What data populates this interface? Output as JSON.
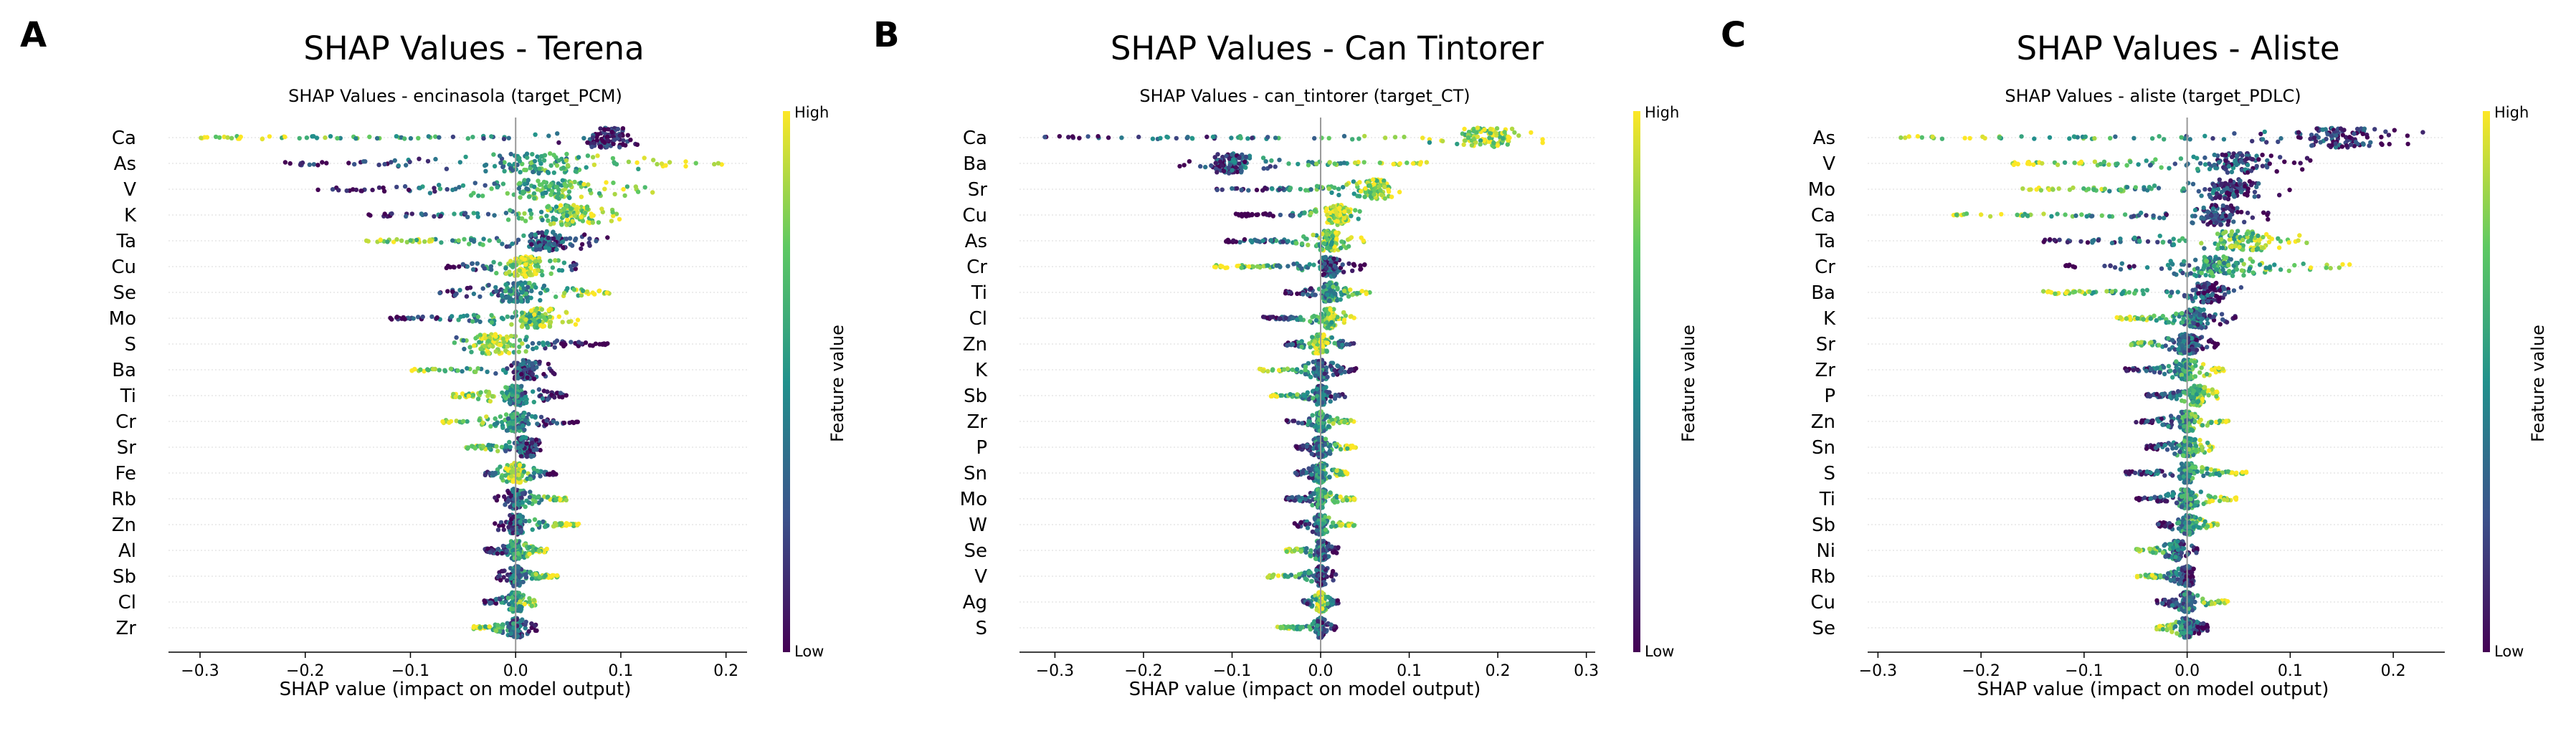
{
  "chart_data": [
    {
      "type": "scatter",
      "panel_letter": "A",
      "title": "SHAP Values - Terena",
      "subtitle": "SHAP Values - encinasola (target_PCM)",
      "xlabel": "SHAP value (impact on model output)",
      "colorbar_label": "Feature value",
      "colorbar_high": "High",
      "colorbar_low": "Low",
      "xlim": [
        -0.33,
        0.22
      ],
      "xticks": [
        -0.3,
        -0.2,
        -0.1,
        0.0,
        0.1,
        0.2
      ],
      "xtick_labels": [
        "−0.3",
        "−0.2",
        "−0.1",
        "0.0",
        "0.1",
        "0.2"
      ],
      "features": [
        {
          "name": "Ca",
          "min": -0.3,
          "max": 0.12,
          "peak": 0.09,
          "width": 0.06,
          "hi": -1
        },
        {
          "name": "As",
          "min": -0.22,
          "max": 0.2,
          "peak": 0.02,
          "width": 0.12,
          "hi": 1
        },
        {
          "name": "V",
          "min": -0.19,
          "max": 0.14,
          "peak": 0.03,
          "width": 0.1,
          "hi": 1
        },
        {
          "name": "K",
          "min": -0.14,
          "max": 0.1,
          "peak": 0.05,
          "width": 0.06,
          "hi": 1
        },
        {
          "name": "Ta",
          "min": -0.15,
          "max": 0.09,
          "peak": 0.03,
          "width": 0.06,
          "hi": -1
        },
        {
          "name": "Cu",
          "min": -0.07,
          "max": 0.06,
          "peak": 0.01,
          "width": 0.04,
          "hi": 0
        },
        {
          "name": "Se",
          "min": -0.08,
          "max": 0.09,
          "peak": 0.0,
          "width": 0.05,
          "hi": 1
        },
        {
          "name": "Mo",
          "min": -0.12,
          "max": 0.06,
          "peak": 0.02,
          "width": 0.05,
          "hi": 1
        },
        {
          "name": "S",
          "min": -0.06,
          "max": 0.09,
          "peak": -0.02,
          "width": 0.05,
          "hi": 0
        },
        {
          "name": "Ba",
          "min": -0.1,
          "max": 0.04,
          "peak": 0.01,
          "width": 0.03,
          "hi": -1
        },
        {
          "name": "Ti",
          "min": -0.06,
          "max": 0.05,
          "peak": 0.0,
          "width": 0.03,
          "hi": -1
        },
        {
          "name": "Cr",
          "min": -0.07,
          "max": 0.06,
          "peak": 0.0,
          "width": 0.03,
          "hi": -1
        },
        {
          "name": "Sr",
          "min": -0.05,
          "max": 0.03,
          "peak": 0.01,
          "width": 0.025,
          "hi": -1
        },
        {
          "name": "Fe",
          "min": -0.03,
          "max": 0.04,
          "peak": 0.0,
          "width": 0.02,
          "hi": 0
        },
        {
          "name": "Rb",
          "min": -0.02,
          "max": 0.05,
          "peak": 0.0,
          "width": 0.02,
          "hi": 1
        },
        {
          "name": "Zn",
          "min": -0.02,
          "max": 0.06,
          "peak": 0.0,
          "width": 0.02,
          "hi": 1
        },
        {
          "name": "Al",
          "min": -0.03,
          "max": 0.03,
          "peak": 0.0,
          "width": 0.015,
          "hi": 1
        },
        {
          "name": "Sb",
          "min": -0.02,
          "max": 0.04,
          "peak": 0.0,
          "width": 0.015,
          "hi": 1
        },
        {
          "name": "Cl",
          "min": -0.03,
          "max": 0.02,
          "peak": 0.0,
          "width": 0.015,
          "hi": 1
        },
        {
          "name": "Zr",
          "min": -0.04,
          "max": 0.02,
          "peak": 0.0,
          "width": 0.015,
          "hi": -1
        }
      ]
    },
    {
      "type": "scatter",
      "panel_letter": "B",
      "title": "SHAP Values - Can Tintorer",
      "subtitle": "SHAP Values - can_tintorer (target_CT)",
      "xlabel": "SHAP value (impact on model output)",
      "colorbar_label": "Feature value",
      "colorbar_high": "High",
      "colorbar_low": "Low",
      "xlim": [
        -0.34,
        0.31
      ],
      "xticks": [
        -0.3,
        -0.2,
        -0.1,
        0.0,
        0.1,
        0.2,
        0.3
      ],
      "xtick_labels": [
        "−0.3",
        "−0.2",
        "−0.1",
        "0.0",
        "0.1",
        "0.2",
        "0.3"
      ],
      "features": [
        {
          "name": "Ca",
          "min": -0.32,
          "max": 0.28,
          "peak": 0.19,
          "width": 0.08,
          "hi": 1
        },
        {
          "name": "Ba",
          "min": -0.16,
          "max": 0.12,
          "peak": -0.1,
          "width": 0.05,
          "hi": 1
        },
        {
          "name": "Sr",
          "min": -0.12,
          "max": 0.09,
          "peak": 0.06,
          "width": 0.05,
          "hi": 1
        },
        {
          "name": "Cu",
          "min": -0.1,
          "max": 0.05,
          "peak": 0.02,
          "width": 0.03,
          "hi": 0
        },
        {
          "name": "As",
          "min": -0.11,
          "max": 0.05,
          "peak": 0.01,
          "width": 0.03,
          "hi": 1
        },
        {
          "name": "Cr",
          "min": -0.12,
          "max": 0.05,
          "peak": 0.01,
          "width": 0.03,
          "hi": -1
        },
        {
          "name": "Ti",
          "min": -0.04,
          "max": 0.06,
          "peak": 0.01,
          "width": 0.02,
          "hi": 1
        },
        {
          "name": "Cl",
          "min": -0.07,
          "max": 0.04,
          "peak": 0.01,
          "width": 0.02,
          "hi": 1
        },
        {
          "name": "Zn",
          "min": -0.04,
          "max": 0.04,
          "peak": 0.0,
          "width": 0.02,
          "hi": 0
        },
        {
          "name": "K",
          "min": -0.07,
          "max": 0.04,
          "peak": 0.0,
          "width": 0.02,
          "hi": -1
        },
        {
          "name": "Sb",
          "min": -0.06,
          "max": 0.03,
          "peak": 0.0,
          "width": 0.015,
          "hi": -1
        },
        {
          "name": "Zr",
          "min": -0.04,
          "max": 0.04,
          "peak": 0.0,
          "width": 0.015,
          "hi": 1
        },
        {
          "name": "P",
          "min": -0.03,
          "max": 0.04,
          "peak": 0.0,
          "width": 0.015,
          "hi": 1
        },
        {
          "name": "Sn",
          "min": -0.03,
          "max": 0.03,
          "peak": 0.0,
          "width": 0.015,
          "hi": 1
        },
        {
          "name": "Mo",
          "min": -0.04,
          "max": 0.04,
          "peak": 0.0,
          "width": 0.015,
          "hi": 1
        },
        {
          "name": "W",
          "min": -0.03,
          "max": 0.04,
          "peak": 0.0,
          "width": 0.015,
          "hi": 1
        },
        {
          "name": "Se",
          "min": -0.04,
          "max": 0.02,
          "peak": 0.0,
          "width": 0.015,
          "hi": -1
        },
        {
          "name": "V",
          "min": -0.06,
          "max": 0.02,
          "peak": 0.0,
          "width": 0.015,
          "hi": -1
        },
        {
          "name": "Ag",
          "min": -0.02,
          "max": 0.02,
          "peak": 0.0,
          "width": 0.01,
          "hi": 0
        },
        {
          "name": "S",
          "min": -0.05,
          "max": 0.02,
          "peak": 0.0,
          "width": 0.01,
          "hi": -1
        }
      ]
    },
    {
      "type": "scatter",
      "panel_letter": "C",
      "title": "SHAP Values - Aliste",
      "subtitle": "SHAP Values - aliste (target_PDLC)",
      "xlabel": "SHAP value (impact on model output)",
      "colorbar_label": "Feature value",
      "colorbar_high": "High",
      "colorbar_low": "Low",
      "xlim": [
        -0.31,
        0.25
      ],
      "xticks": [
        -0.3,
        -0.2,
        -0.1,
        0.0,
        0.1,
        0.2
      ],
      "xtick_labels": [
        "−0.3",
        "−0.2",
        "−0.1",
        "0.0",
        "0.1",
        "0.2"
      ],
      "features": [
        {
          "name": "As",
          "min": -0.28,
          "max": 0.23,
          "peak": 0.15,
          "width": 0.1,
          "hi": -1
        },
        {
          "name": "V",
          "min": -0.17,
          "max": 0.12,
          "peak": 0.05,
          "width": 0.08,
          "hi": -1
        },
        {
          "name": "Mo",
          "min": -0.16,
          "max": 0.1,
          "peak": 0.04,
          "width": 0.07,
          "hi": -1
        },
        {
          "name": "Ca",
          "min": -0.24,
          "max": 0.08,
          "peak": 0.03,
          "width": 0.05,
          "hi": -1
        },
        {
          "name": "Ta",
          "min": -0.14,
          "max": 0.12,
          "peak": 0.05,
          "width": 0.08,
          "hi": 1
        },
        {
          "name": "Cr",
          "min": -0.12,
          "max": 0.16,
          "peak": 0.03,
          "width": 0.08,
          "hi": 1
        },
        {
          "name": "Ba",
          "min": -0.14,
          "max": 0.06,
          "peak": 0.02,
          "width": 0.04,
          "hi": -1
        },
        {
          "name": "K",
          "min": -0.07,
          "max": 0.05,
          "peak": 0.01,
          "width": 0.03,
          "hi": -1
        },
        {
          "name": "Sr",
          "min": -0.07,
          "max": 0.03,
          "peak": 0.0,
          "width": 0.025,
          "hi": -1
        },
        {
          "name": "Zr",
          "min": -0.06,
          "max": 0.04,
          "peak": 0.0,
          "width": 0.025,
          "hi": 1
        },
        {
          "name": "P",
          "min": -0.04,
          "max": 0.03,
          "peak": 0.01,
          "width": 0.02,
          "hi": 1
        },
        {
          "name": "Zn",
          "min": -0.05,
          "max": 0.04,
          "peak": 0.0,
          "width": 0.02,
          "hi": 1
        },
        {
          "name": "Sn",
          "min": -0.04,
          "max": 0.03,
          "peak": 0.0,
          "width": 0.02,
          "hi": 1
        },
        {
          "name": "S",
          "min": -0.06,
          "max": 0.06,
          "peak": 0.0,
          "width": 0.02,
          "hi": 1
        },
        {
          "name": "Ti",
          "min": -0.05,
          "max": 0.05,
          "peak": 0.0,
          "width": 0.02,
          "hi": 1
        },
        {
          "name": "Sb",
          "min": -0.03,
          "max": 0.03,
          "peak": 0.0,
          "width": 0.015,
          "hi": 1
        },
        {
          "name": "Ni",
          "min": -0.05,
          "max": 0.01,
          "peak": -0.01,
          "width": 0.015,
          "hi": -1
        },
        {
          "name": "Rb",
          "min": -0.05,
          "max": 0.01,
          "peak": 0.0,
          "width": 0.015,
          "hi": -1
        },
        {
          "name": "Cu",
          "min": -0.03,
          "max": 0.04,
          "peak": 0.0,
          "width": 0.015,
          "hi": 1
        },
        {
          "name": "Se",
          "min": -0.03,
          "max": 0.02,
          "peak": 0.0,
          "width": 0.015,
          "hi": -1
        }
      ]
    }
  ],
  "colormap": [
    "#440154",
    "#3b528b",
    "#21918c",
    "#5ec962",
    "#fde725"
  ]
}
